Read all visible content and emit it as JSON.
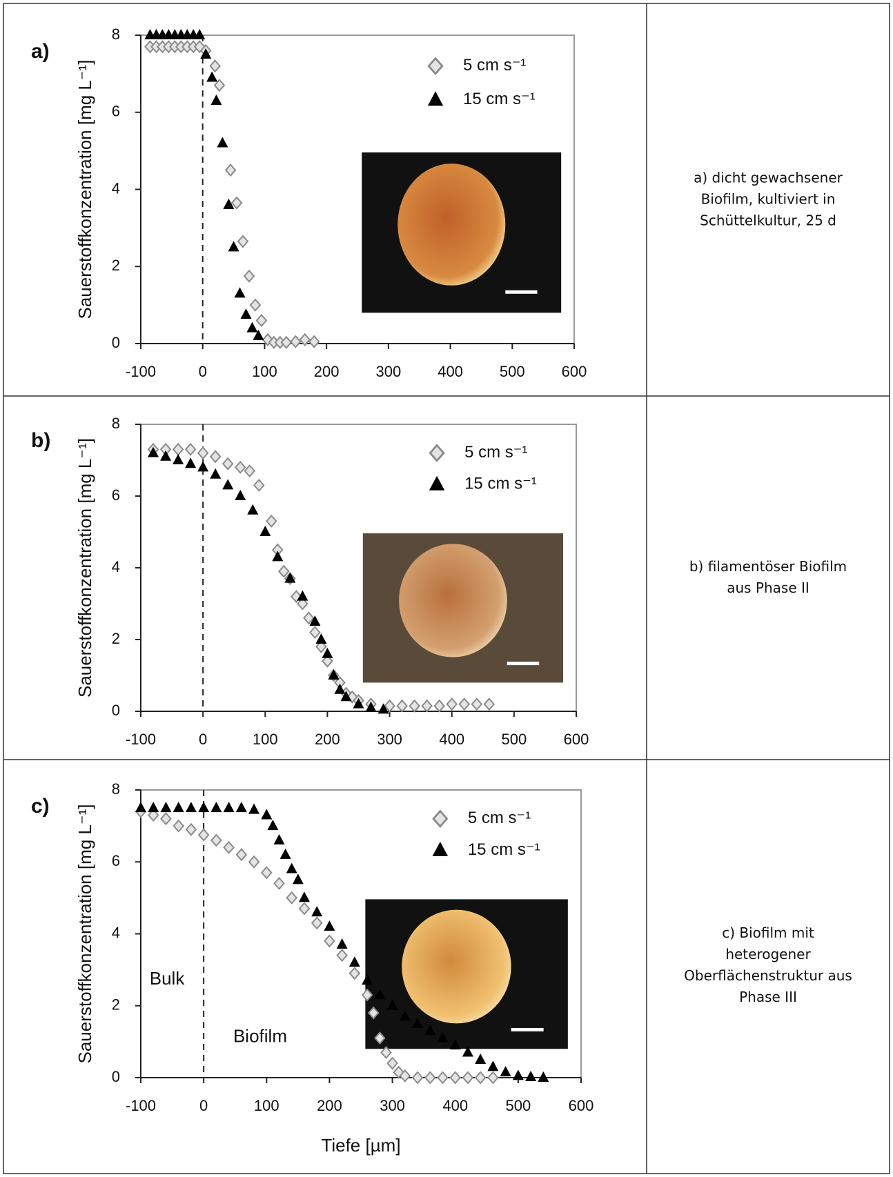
{
  "chart_data": [
    {
      "type": "scatter",
      "panel_label": "a)",
      "y_label": "Sauerstoffkonzentration [mg L⁻¹]",
      "xlim": [
        -100,
        600
      ],
      "ylim": [
        0,
        8
      ],
      "xticks": [
        -100,
        0,
        100,
        200,
        300,
        400,
        500,
        600
      ],
      "yticks": [
        0,
        2,
        4,
        6,
        8
      ],
      "vline": 0,
      "legend": "upper right",
      "series": [
        {
          "name": "5 cm s⁻¹",
          "marker": "diamond",
          "color": "#8a8a8a",
          "x": [
            -85,
            -75,
            -65,
            -55,
            -45,
            -35,
            -25,
            -15,
            -5,
            5,
            20,
            27,
            45,
            55,
            65,
            75,
            85,
            95,
            105,
            115,
            125,
            135,
            150,
            165,
            180
          ],
          "values": [
            7.7,
            7.7,
            7.7,
            7.7,
            7.7,
            7.7,
            7.7,
            7.7,
            7.7,
            7.6,
            7.2,
            6.7,
            4.5,
            3.65,
            2.65,
            1.75,
            1.0,
            0.6,
            0.1,
            0.03,
            0.03,
            0.03,
            0.05,
            0.1,
            0.05
          ]
        },
        {
          "name": "15 cm s⁻¹",
          "marker": "triangle",
          "color": "#000000",
          "x": [
            -85,
            -75,
            -65,
            -55,
            -45,
            -35,
            -25,
            -15,
            -5,
            5,
            15,
            22,
            32,
            42,
            50,
            60,
            70,
            80,
            90
          ],
          "values": [
            8.0,
            8.0,
            8.0,
            8.0,
            8.0,
            8.0,
            8.0,
            8.0,
            8.0,
            7.5,
            6.9,
            6.3,
            5.2,
            3.6,
            2.5,
            1.3,
            0.75,
            0.4,
            0.2
          ]
        }
      ]
    },
    {
      "type": "scatter",
      "panel_label": "b)",
      "y_label": "Sauerstoffkonzentration [mg L⁻¹]",
      "xlim": [
        -100,
        600
      ],
      "ylim": [
        0,
        8
      ],
      "xticks": [
        -100,
        0,
        100,
        200,
        300,
        400,
        500,
        600
      ],
      "yticks": [
        0,
        2,
        4,
        6,
        8
      ],
      "vline": 0,
      "legend": "upper right",
      "series": [
        {
          "name": "5 cm s⁻¹",
          "marker": "diamond",
          "color": "#8a8a8a",
          "x": [
            -80,
            -60,
            -40,
            -20,
            0,
            20,
            40,
            60,
            75,
            90,
            110,
            120,
            130,
            140,
            150,
            160,
            170,
            180,
            190,
            200,
            210,
            220,
            230,
            240,
            250,
            270,
            300,
            320,
            340,
            360,
            380,
            400,
            420,
            440,
            460
          ],
          "values": [
            7.3,
            7.3,
            7.3,
            7.3,
            7.2,
            7.1,
            6.9,
            6.8,
            6.7,
            6.3,
            5.3,
            4.5,
            3.9,
            3.7,
            3.2,
            3.0,
            2.6,
            2.2,
            1.8,
            1.4,
            1.0,
            0.8,
            0.5,
            0.4,
            0.3,
            0.2,
            0.15,
            0.15,
            0.15,
            0.15,
            0.15,
            0.2,
            0.2,
            0.2,
            0.2
          ]
        },
        {
          "name": "15 cm s⁻¹",
          "marker": "triangle",
          "color": "#000000",
          "x": [
            -80,
            -60,
            -40,
            -20,
            0,
            20,
            40,
            60,
            80,
            100,
            120,
            140,
            160,
            180,
            190,
            200,
            210,
            220,
            230,
            250,
            270,
            290
          ],
          "values": [
            7.2,
            7.1,
            7.0,
            6.9,
            6.8,
            6.6,
            6.3,
            6.0,
            5.6,
            5.0,
            4.3,
            3.7,
            3.2,
            2.5,
            2.0,
            1.6,
            1.0,
            0.6,
            0.4,
            0.2,
            0.1,
            0.05
          ]
        }
      ]
    },
    {
      "type": "scatter",
      "panel_label": "c)",
      "y_label": "Sauerstoffkonzentration [mg L⁻¹]",
      "x_label": "Tiefe [µm]",
      "xlim": [
        -100,
        600
      ],
      "ylim": [
        0,
        8
      ],
      "xticks": [
        -100,
        0,
        100,
        200,
        300,
        400,
        500,
        600
      ],
      "yticks": [
        0,
        2,
        4,
        6,
        8
      ],
      "vline": 0,
      "legend": "upper right",
      "annotations": [
        "Bulk",
        "Biofilm"
      ],
      "series": [
        {
          "name": "5 cm s⁻¹",
          "marker": "diamond",
          "color": "#8a8a8a",
          "x": [
            -100,
            -80,
            -60,
            -40,
            -20,
            0,
            20,
            40,
            60,
            80,
            100,
            120,
            140,
            160,
            180,
            200,
            220,
            240,
            260,
            270,
            280,
            290,
            300,
            310,
            320,
            340,
            360,
            380,
            400,
            420,
            440,
            460
          ],
          "values": [
            7.4,
            7.3,
            7.2,
            7.0,
            6.9,
            6.75,
            6.6,
            6.4,
            6.2,
            6.0,
            5.7,
            5.4,
            5.0,
            4.7,
            4.3,
            3.8,
            3.4,
            2.9,
            2.3,
            1.8,
            1.1,
            0.7,
            0.4,
            0.15,
            0.05,
            0,
            0,
            0,
            0,
            0,
            0,
            0
          ]
        },
        {
          "name": "15 cm s⁻¹",
          "marker": "triangle",
          "color": "#000000",
          "x": [
            -100,
            -80,
            -60,
            -40,
            -20,
            0,
            20,
            40,
            60,
            80,
            100,
            110,
            120,
            130,
            140,
            150,
            160,
            180,
            200,
            220,
            240,
            260,
            280,
            300,
            320,
            340,
            360,
            380,
            400,
            420,
            440,
            460,
            480,
            500,
            520,
            540
          ],
          "values": [
            7.5,
            7.5,
            7.5,
            7.5,
            7.5,
            7.5,
            7.5,
            7.5,
            7.5,
            7.45,
            7.3,
            7.0,
            6.6,
            6.2,
            5.8,
            5.5,
            5.0,
            4.6,
            4.2,
            3.7,
            3.2,
            2.7,
            2.3,
            2.0,
            1.7,
            1.5,
            1.3,
            1.1,
            0.9,
            0.7,
            0.5,
            0.3,
            0.15,
            0.05,
            0.02,
            0
          ]
        }
      ]
    }
  ],
  "captions": [
    [
      "a) dicht gewachsener",
      "Biofilm, kultiviert in",
      "Schüttelkultur, 25 d"
    ],
    [
      "b) filamentöser Biofilm",
      "aus Phase II"
    ],
    [
      "c) Biofilm mit",
      "heterogener",
      "Oberflächenstruktur aus",
      "Phase III"
    ]
  ]
}
